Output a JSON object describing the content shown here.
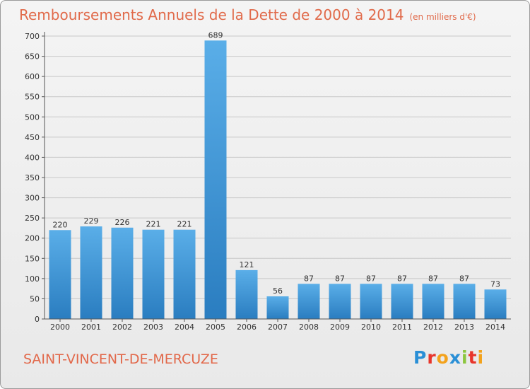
{
  "header": {
    "title": "Remboursements Annuels de la Dette de 2000 à 2014",
    "unit": "(en milliers d'€)"
  },
  "footer": {
    "town": "SAINT-VINCENT-DE-MERCUZE",
    "brand_letters": [
      "P",
      "r",
      "o",
      "x",
      "i",
      "t",
      "i"
    ],
    "brand_colors": [
      "#2a8fd6",
      "#e8352b",
      "#f3a21c",
      "#2a8fd6",
      "#8cc63e",
      "#e8352b",
      "#f3a21c"
    ]
  },
  "colors": {
    "bar_top": "#5aaee8",
    "bar_bottom": "#2a7dc0",
    "axis": "#555555",
    "grid": "#c8c8c8"
  },
  "chart_data": {
    "type": "bar",
    "title": "Remboursements Annuels de la Dette de 2000 à 2014",
    "categories": [
      "2000",
      "2001",
      "2002",
      "2003",
      "2004",
      "2005",
      "2006",
      "2007",
      "2008",
      "2009",
      "2010",
      "2011",
      "2012",
      "2013",
      "2014"
    ],
    "values": [
      220,
      229,
      226,
      221,
      221,
      689,
      121,
      56,
      87,
      87,
      87,
      87,
      87,
      87,
      73
    ],
    "ylim": [
      0,
      700
    ],
    "yticks": [
      0,
      50,
      100,
      150,
      200,
      250,
      300,
      350,
      400,
      450,
      500,
      550,
      600,
      650,
      700
    ],
    "grid": true
  }
}
